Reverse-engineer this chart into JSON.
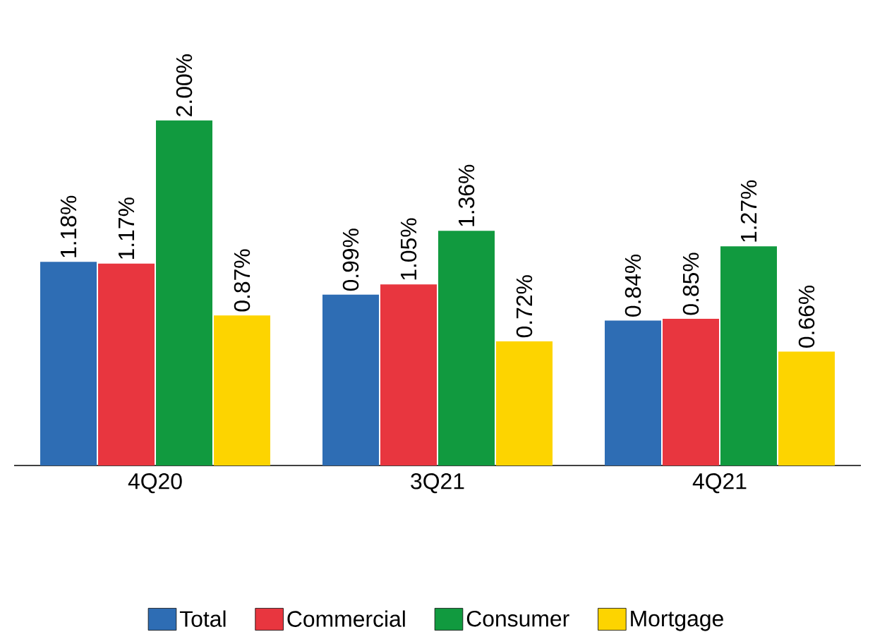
{
  "chart_data": {
    "type": "bar",
    "categories": [
      "4Q20",
      "3Q21",
      "4Q21"
    ],
    "series": [
      {
        "name": "Total",
        "color": "#2e6db4",
        "values": [
          1.18,
          0.99,
          0.84
        ],
        "value_labels": [
          "1.18%",
          "0.99%",
          "0.84%"
        ]
      },
      {
        "name": "Commercial",
        "color": "#e8363f",
        "values": [
          1.17,
          1.05,
          0.85
        ],
        "value_labels": [
          "1.17%",
          "1.05%",
          "0.85%"
        ]
      },
      {
        "name": "Consumer",
        "color": "#119a3f",
        "values": [
          2.0,
          1.36,
          1.27
        ],
        "value_labels": [
          "2.00%",
          "1.36%",
          "1.27%"
        ]
      },
      {
        "name": "Mortgage",
        "color": "#fdd400",
        "values": [
          0.87,
          0.72,
          0.66
        ],
        "value_labels": [
          "0.87%",
          "0.72%",
          "0.66%"
        ]
      }
    ],
    "legend": "bottom"
  }
}
